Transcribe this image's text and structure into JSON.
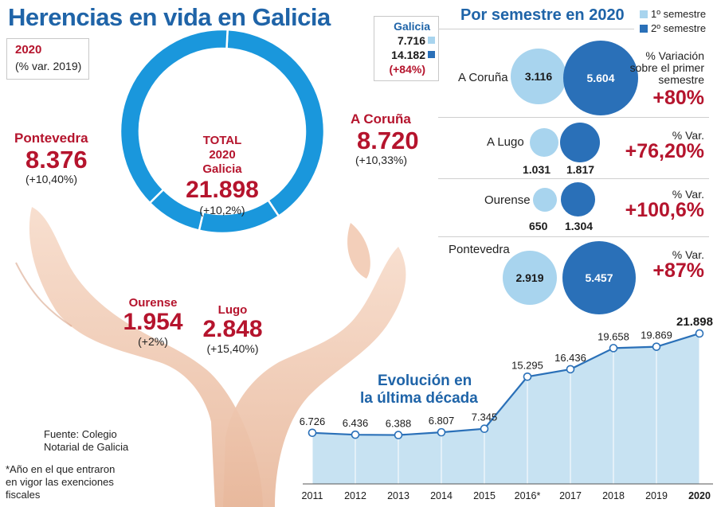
{
  "title": "Herencias en vida en Galicia",
  "year_box": {
    "year": "2020",
    "subtitle": "(% var. 2019)"
  },
  "total": {
    "line1": "TOTAL",
    "line2": "2020",
    "line3": "Galicia",
    "value": "21.898",
    "pct": "(+10,2%)"
  },
  "regions": {
    "pontevedra": {
      "name": "Pontevedra",
      "value": "8.376",
      "pct": "(+10,40%)"
    },
    "acoruna": {
      "name": "A Coruña",
      "value": "8.720",
      "pct": "(+10,33%)"
    },
    "ourense": {
      "name": "Ourense",
      "value": "1.954",
      "pct": "(+2%)"
    },
    "lugo": {
      "name": "Lugo",
      "value": "2.848",
      "pct": "(+15,40%)"
    }
  },
  "galicia_box": {
    "label": "Galicia",
    "first": "7.716",
    "second": "14.182",
    "var": "(+84%)"
  },
  "semester": {
    "title": "Por semestre en 2020",
    "legend_first": "1º semestre",
    "legend_second": "2º semestre",
    "rows": [
      {
        "name": "A Coruña",
        "first": "3.116",
        "second": "5.604",
        "var_label": "% Variación sobre el primer semestre",
        "var_value": "+80%"
      },
      {
        "name": "A Lugo",
        "first": "1.031",
        "second": "1.817",
        "var_label": "% Var.",
        "var_value": "+76,20%"
      },
      {
        "name": "Ourense",
        "first": "650",
        "second": "1.304",
        "var_label": "% Var.",
        "var_value": "+100,6%"
      },
      {
        "name": "Pontevedra",
        "first": "2.919",
        "second": "5.457",
        "var_label": "% Var.",
        "var_value": "+87%"
      }
    ]
  },
  "evolution_title": {
    "line1": "Evolución en",
    "line2": "la última década"
  },
  "source": {
    "line1": "Fuente: Colegio",
    "line2": "Notarial de Galicia"
  },
  "footnote": {
    "line1": "*Año en el que entraron",
    "line2": "en vigor las exenciones",
    "line3": "fiscales"
  },
  "colors": {
    "ring": "#1a97dc",
    "first_semester": "#a8d4ee",
    "second_semester": "#2a70b8",
    "accent": "#b5142d",
    "title": "#1f64a8",
    "area": "#c7e2f2"
  },
  "chart_data": [
    {
      "type": "pie",
      "title": "TOTAL 2020 Galicia",
      "categories": [
        "A Coruña",
        "Lugo",
        "Ourense",
        "Pontevedra"
      ],
      "values": [
        8720,
        2848,
        1954,
        8376
      ],
      "labels": [
        "8.720",
        "2.848",
        "1.954",
        "8.376"
      ],
      "total": 21898
    },
    {
      "type": "area",
      "title": "Evolución en la última década",
      "categories": [
        "2011",
        "2012",
        "2013",
        "2014",
        "2015",
        "2016*",
        "2017",
        "2018",
        "2019",
        "2020"
      ],
      "values": [
        6726,
        6436,
        6388,
        6807,
        7345,
        15295,
        16436,
        19658,
        19869,
        21898
      ],
      "labels": [
        "6.726",
        "6.436",
        "6.388",
        "6.807",
        "7.345",
        "15.295",
        "16.436",
        "19.658",
        "19.869",
        "21.898"
      ]
    }
  ]
}
